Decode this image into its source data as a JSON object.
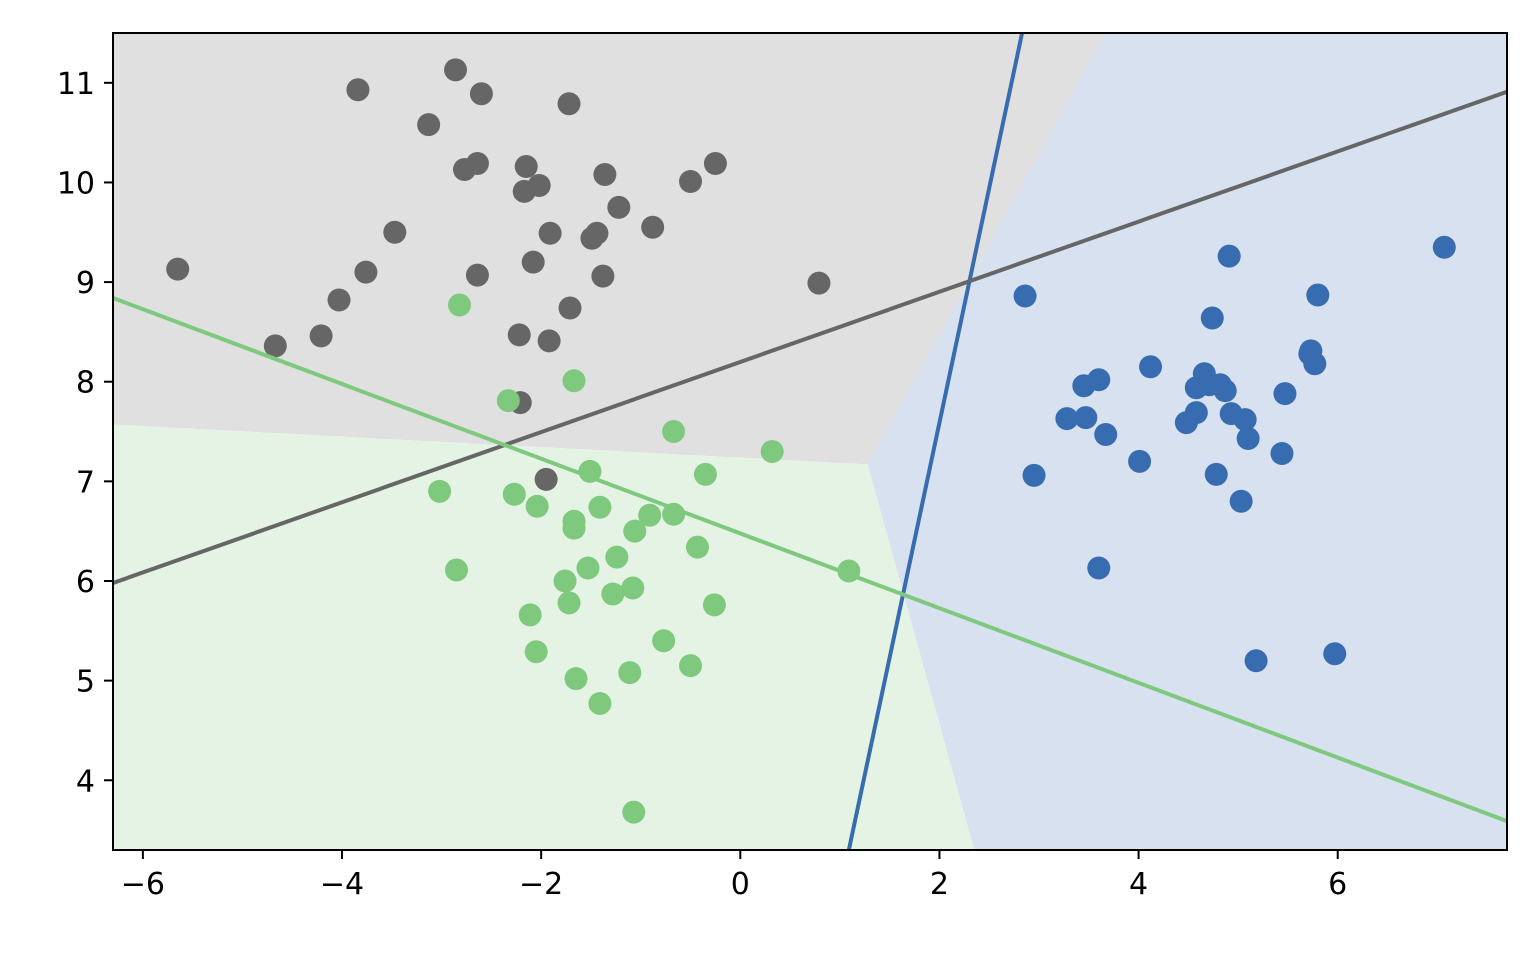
{
  "chart_data": {
    "type": "scatter",
    "title": "",
    "xlabel": "",
    "ylabel": "",
    "xlim": [
      -6.3,
      7.7
    ],
    "ylim": [
      3.3,
      11.5
    ],
    "x_ticks": [
      -6,
      -4,
      -2,
      0,
      2,
      4,
      6
    ],
    "y_ticks": [
      4,
      5,
      6,
      7,
      8,
      9,
      10,
      11
    ],
    "x_tick_labels": [
      "−6",
      "−4",
      "−2",
      "0",
      "2",
      "4",
      "6"
    ],
    "y_tick_labels": [
      "4",
      "5",
      "6",
      "7",
      "8",
      "9",
      "10",
      "11"
    ],
    "grid": false,
    "legend": "none",
    "colors": {
      "gray": "#666666",
      "green": "#7fc97f",
      "blue": "#386cb0",
      "gray_region": "#e0e0e0",
      "green_region": "#e5f3e5",
      "blue_region": "#d8e1ef"
    },
    "regions": [
      {
        "color_key": "gray_region",
        "polygon": [
          [
            -6.3,
            11.5
          ],
          [
            3.67,
            11.5
          ],
          [
            1.28,
            7.17
          ],
          [
            -6.3,
            7.57
          ]
        ]
      },
      {
        "color_key": "green_region",
        "polygon": [
          [
            -6.3,
            7.57
          ],
          [
            1.28,
            7.17
          ],
          [
            2.35,
            3.3
          ],
          [
            -6.3,
            3.3
          ]
        ]
      },
      {
        "color_key": "blue_region",
        "polygon": [
          [
            3.67,
            11.5
          ],
          [
            7.7,
            11.5
          ],
          [
            7.7,
            3.3
          ],
          [
            2.35,
            3.3
          ],
          [
            1.28,
            7.17
          ]
        ]
      }
    ],
    "lines": [
      {
        "color_key": "blue",
        "points": [
          [
            1.09,
            3.3
          ],
          [
            2.83,
            11.5
          ]
        ]
      },
      {
        "color_key": "gray",
        "points": [
          [
            -6.3,
            5.98
          ],
          [
            7.7,
            10.91
          ]
        ]
      },
      {
        "color_key": "green",
        "points": [
          [
            -6.3,
            8.84
          ],
          [
            7.7,
            3.59
          ]
        ]
      }
    ],
    "series": [
      {
        "color_key": "gray",
        "points": [
          [
            -5.65,
            9.13
          ],
          [
            -4.67,
            8.36
          ],
          [
            -4.21,
            8.46
          ],
          [
            -4.03,
            8.82
          ],
          [
            -3.76,
            9.1
          ],
          [
            -3.47,
            9.5
          ],
          [
            -3.84,
            10.93
          ],
          [
            -3.13,
            10.58
          ],
          [
            -2.86,
            11.13
          ],
          [
            -2.6,
            10.89
          ],
          [
            -2.77,
            10.13
          ],
          [
            -2.64,
            10.19
          ],
          [
            -2.64,
            9.07
          ],
          [
            -2.15,
            10.16
          ],
          [
            -2.17,
            9.91
          ],
          [
            -2.02,
            9.97
          ],
          [
            -1.91,
            9.49
          ],
          [
            -1.72,
            10.79
          ],
          [
            -2.08,
            9.2
          ],
          [
            -1.71,
            8.74
          ],
          [
            -2.22,
            8.47
          ],
          [
            -1.92,
            8.41
          ],
          [
            -1.49,
            9.44
          ],
          [
            -1.44,
            9.49
          ],
          [
            -1.36,
            10.08
          ],
          [
            -1.22,
            9.75
          ],
          [
            -1.38,
            9.06
          ],
          [
            -0.88,
            9.55
          ],
          [
            -0.5,
            10.01
          ],
          [
            -0.25,
            10.19
          ],
          [
            0.79,
            8.99
          ],
          [
            -2.21,
            7.79
          ],
          [
            -1.95,
            7.02
          ]
        ]
      },
      {
        "color_key": "green",
        "points": [
          [
            -2.82,
            8.77
          ],
          [
            -2.33,
            7.81
          ],
          [
            -1.67,
            8.01
          ],
          [
            -0.67,
            7.5
          ],
          [
            0.32,
            7.3
          ],
          [
            -3.02,
            6.9
          ],
          [
            -2.27,
            6.87
          ],
          [
            -2.04,
            6.75
          ],
          [
            -1.51,
            7.1
          ],
          [
            -1.67,
            6.6
          ],
          [
            -1.67,
            6.53
          ],
          [
            -1.41,
            6.74
          ],
          [
            -1.06,
            6.5
          ],
          [
            -0.91,
            6.66
          ],
          [
            -0.67,
            6.67
          ],
          [
            -0.35,
            7.07
          ],
          [
            -0.43,
            6.34
          ],
          [
            -2.85,
            6.11
          ],
          [
            -1.53,
            6.13
          ],
          [
            -1.76,
            6.0
          ],
          [
            -1.24,
            6.24
          ],
          [
            -1.28,
            5.87
          ],
          [
            -1.08,
            5.93
          ],
          [
            -1.72,
            5.78
          ],
          [
            -2.11,
            5.66
          ],
          [
            -0.26,
            5.76
          ],
          [
            -0.77,
            5.4
          ],
          [
            -2.05,
            5.29
          ],
          [
            -1.65,
            5.02
          ],
          [
            -1.11,
            5.08
          ],
          [
            -0.5,
            5.15
          ],
          [
            -1.41,
            4.77
          ],
          [
            1.09,
            6.1
          ],
          [
            -1.07,
            3.68
          ]
        ]
      },
      {
        "color_key": "blue",
        "points": [
          [
            2.86,
            8.86
          ],
          [
            2.95,
            7.06
          ],
          [
            3.28,
            7.63
          ],
          [
            3.45,
            7.96
          ],
          [
            3.47,
            7.64
          ],
          [
            3.6,
            8.02
          ],
          [
            3.67,
            7.47
          ],
          [
            3.6,
            6.13
          ],
          [
            4.01,
            7.2
          ],
          [
            4.12,
            8.15
          ],
          [
            4.48,
            7.59
          ],
          [
            4.58,
            7.69
          ],
          [
            4.58,
            7.94
          ],
          [
            4.66,
            8.08
          ],
          [
            4.71,
            7.97
          ],
          [
            4.74,
            8.64
          ],
          [
            4.82,
            7.97
          ],
          [
            4.87,
            7.91
          ],
          [
            4.91,
            9.26
          ],
          [
            4.78,
            7.07
          ],
          [
            4.93,
            7.68
          ],
          [
            5.03,
            6.8
          ],
          [
            5.07,
            7.62
          ],
          [
            5.1,
            7.43
          ],
          [
            5.18,
            5.2
          ],
          [
            5.44,
            7.28
          ],
          [
            5.47,
            7.88
          ],
          [
            5.72,
            8.28
          ],
          [
            5.73,
            8.31
          ],
          [
            5.77,
            8.18
          ],
          [
            5.8,
            8.87
          ],
          [
            5.97,
            5.27
          ],
          [
            7.07,
            9.35
          ]
        ]
      }
    ]
  }
}
